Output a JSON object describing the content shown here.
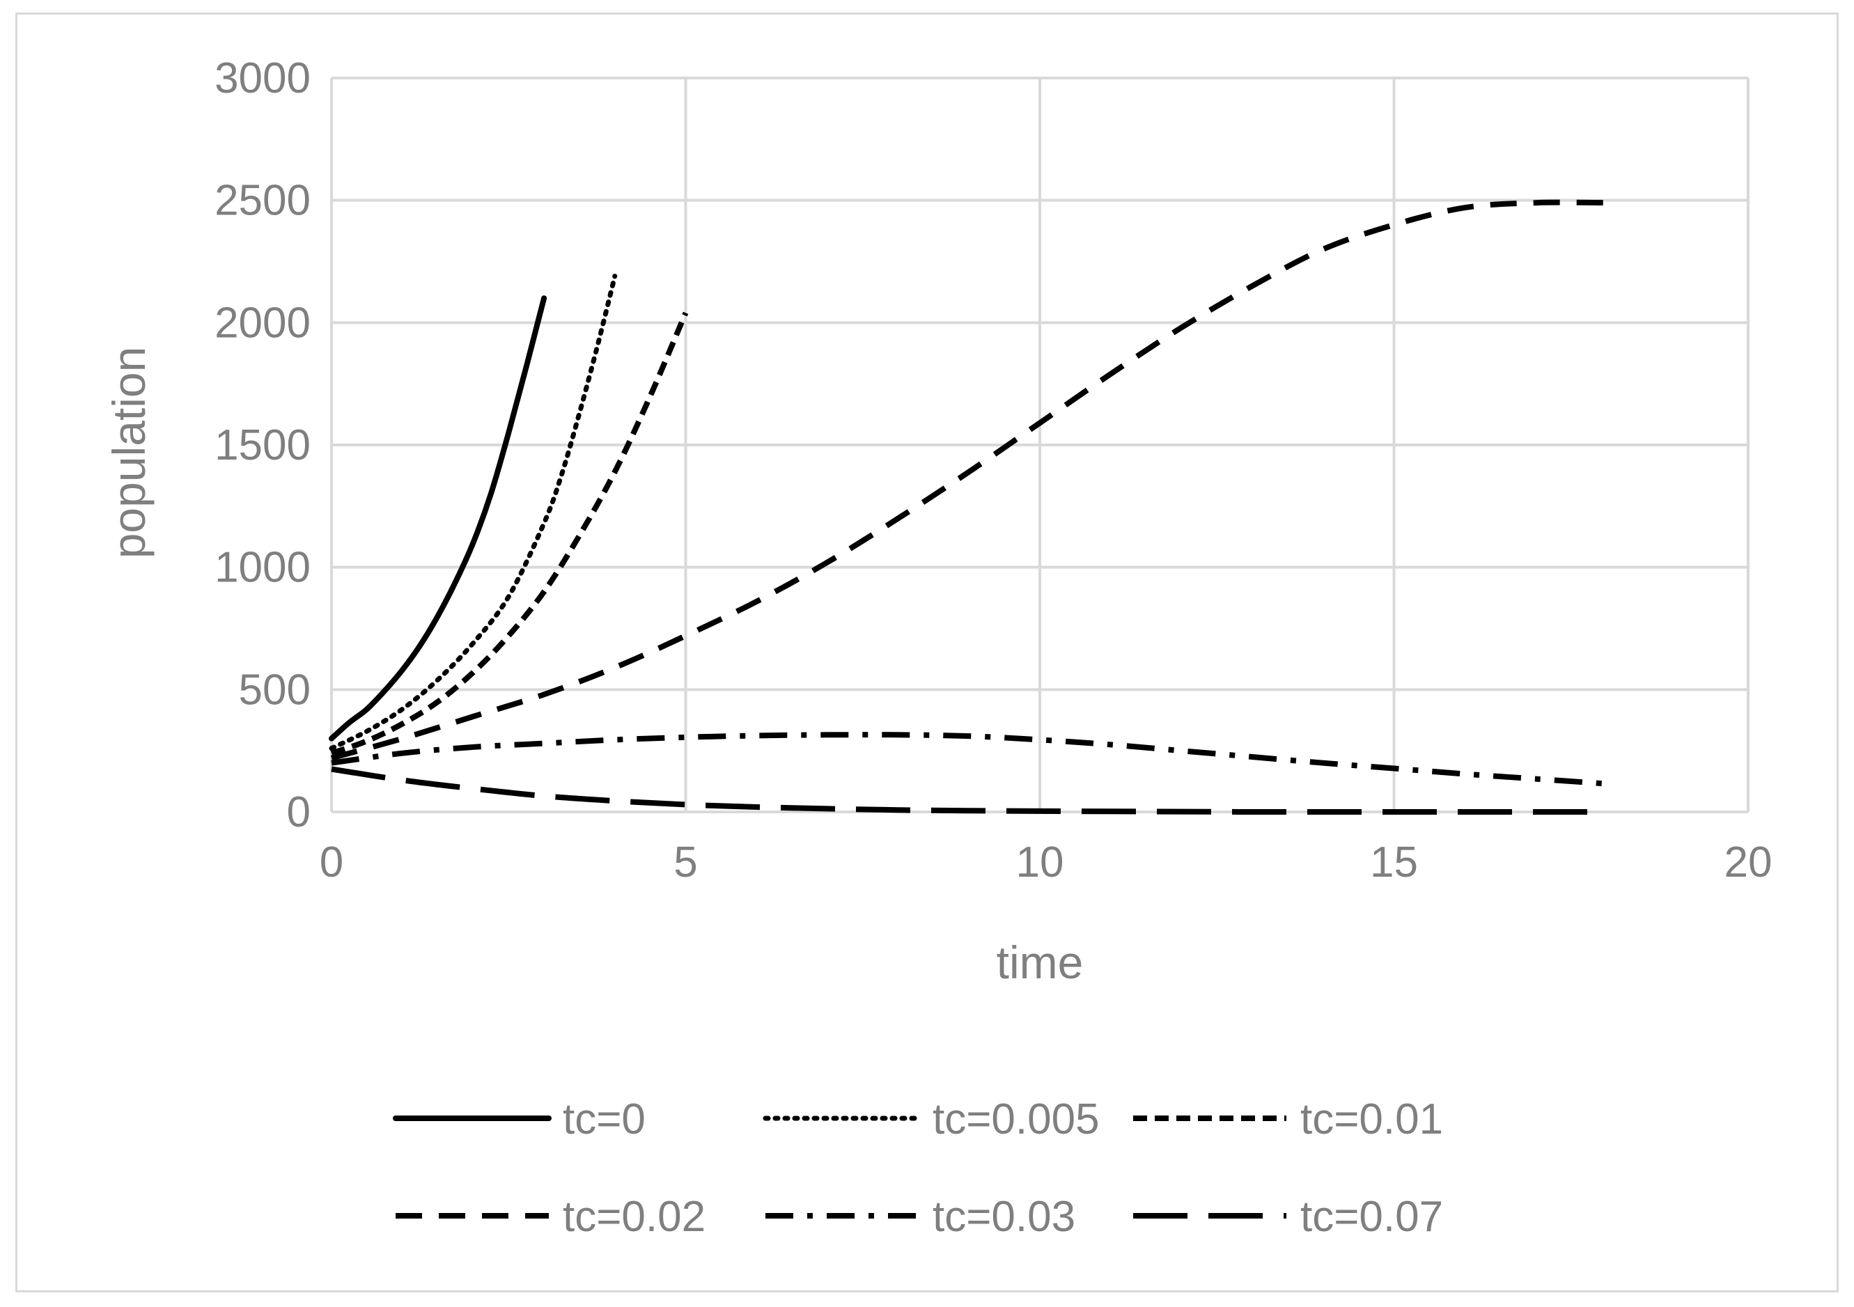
{
  "chart_data": {
    "type": "line",
    "title": "",
    "xlabel": "time",
    "ylabel": "population",
    "xlim": [
      0,
      20
    ],
    "ylim": [
      0,
      3000
    ],
    "xticks": [
      0,
      5,
      10,
      15,
      20
    ],
    "yticks": [
      0,
      500,
      1000,
      1500,
      2000,
      2500,
      3000
    ],
    "grid": true,
    "legend_position": "bottom",
    "series": [
      {
        "name": "tc=0",
        "style": "solid",
        "color": "#000000",
        "x": [
          0,
          0.25,
          0.5,
          0.75,
          1.0,
          1.25,
          1.5,
          1.75,
          2.0,
          2.25,
          2.5,
          2.75,
          3.0
        ],
        "y": [
          300,
          365,
          420,
          495,
          580,
          680,
          800,
          940,
          1100,
          1300,
          1550,
          1820,
          2100
        ]
      },
      {
        "name": "tc=0.005",
        "style": "dotted",
        "color": "#000000",
        "x": [
          0,
          0.5,
          1.0,
          1.5,
          2.0,
          2.5,
          3.0,
          3.25,
          3.5,
          3.75,
          4.0
        ],
        "y": [
          260,
          330,
          420,
          540,
          690,
          880,
          1180,
          1380,
          1630,
          1900,
          2190
        ]
      },
      {
        "name": "tc=0.01",
        "style": "short-dash",
        "color": "#000000",
        "x": [
          0,
          0.5,
          1.0,
          1.5,
          2.0,
          2.5,
          3.0,
          3.5,
          4.0,
          4.5,
          5.0
        ],
        "y": [
          240,
          290,
          360,
          450,
          570,
          720,
          900,
          1130,
          1390,
          1700,
          2040
        ]
      },
      {
        "name": "tc=0.02",
        "style": "dash",
        "color": "#000000",
        "x": [
          0,
          1,
          2,
          3,
          4,
          5,
          6,
          7,
          8,
          9,
          10,
          11,
          12,
          13,
          14,
          15,
          16,
          17,
          18
        ],
        "y": [
          220,
          300,
          390,
          480,
          590,
          720,
          860,
          1020,
          1200,
          1390,
          1590,
          1790,
          1980,
          2150,
          2300,
          2400,
          2470,
          2490,
          2490
        ]
      },
      {
        "name": "tc=0.03",
        "style": "dash-dot",
        "color": "#000000",
        "x": [
          0,
          1,
          2,
          3,
          4,
          5,
          6,
          7,
          8,
          9,
          10,
          11,
          12,
          13,
          14,
          15,
          16,
          17,
          18
        ],
        "y": [
          200,
          240,
          265,
          280,
          295,
          305,
          312,
          315,
          315,
          310,
          295,
          275,
          250,
          225,
          200,
          178,
          155,
          135,
          115
        ]
      },
      {
        "name": "tc=0.07",
        "style": "long-dash",
        "color": "#000000",
        "x": [
          0,
          1,
          2,
          3,
          4,
          5,
          6,
          7,
          8,
          9,
          10,
          11,
          12,
          13,
          14,
          15,
          16,
          17,
          18
        ],
        "y": [
          175,
          130,
          95,
          65,
          45,
          30,
          20,
          13,
          8,
          5,
          3,
          2,
          1,
          0,
          0,
          0,
          0,
          0,
          0
        ]
      }
    ]
  }
}
